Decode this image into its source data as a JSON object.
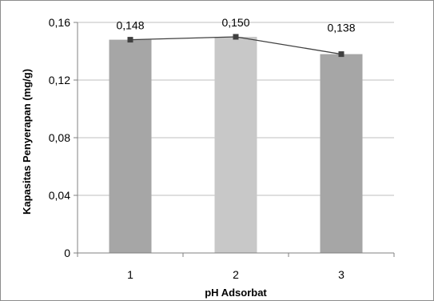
{
  "chart_data": {
    "type": "bar",
    "categories": [
      "1",
      "2",
      "3"
    ],
    "values": [
      0.148,
      0.15,
      0.138
    ],
    "value_labels": [
      "0,148",
      "0,150",
      "0,138"
    ],
    "overlay": "line-with-square-markers",
    "xlabel": "pH Adsorbat",
    "ylabel": "Kapasitas Penyerapan (mg/g)",
    "ylim": [
      0,
      0.16
    ],
    "yticks": [
      0,
      0.04,
      0.08,
      0.12,
      0.16
    ],
    "ytick_labels": [
      "0",
      "0,04",
      "0,08",
      "0,12",
      "0,16"
    ],
    "grid": true,
    "legend": "none",
    "colors": {
      "bars": [
        "#a6a6a6",
        "#c8c8c8",
        "#a6a6a6"
      ],
      "line": "#404040",
      "marker": "#404040",
      "grid": "#bfbfbf"
    }
  }
}
